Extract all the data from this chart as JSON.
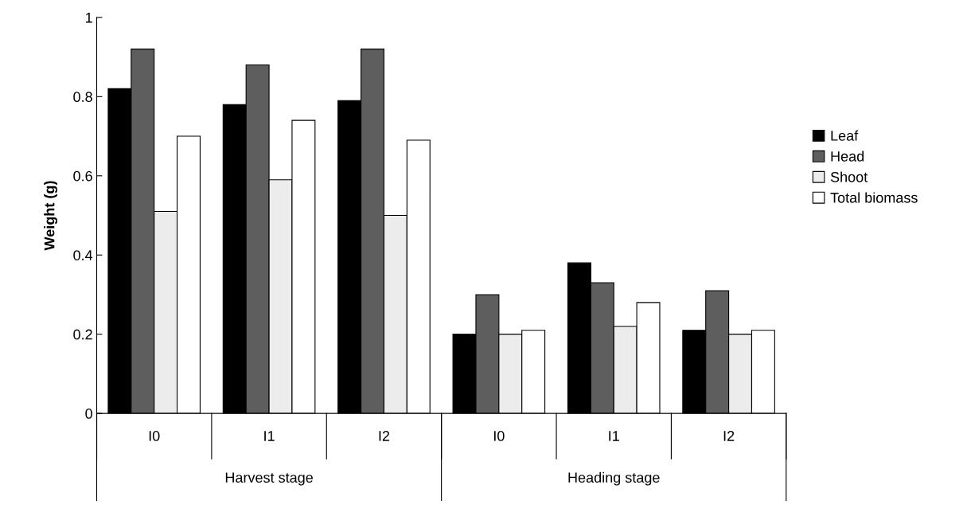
{
  "chart_data": {
    "type": "bar",
    "ylabel": "Weight (g)",
    "categories": [
      "I0",
      "I1",
      "I2",
      "I0",
      "I1",
      "I2"
    ],
    "series": [
      {
        "name": "Leaf",
        "color": "#000000",
        "values": [
          0.82,
          0.78,
          0.79,
          0.2,
          0.38,
          0.21
        ]
      },
      {
        "name": "Head",
        "color": "#5e5e5e",
        "values": [
          0.92,
          0.88,
          0.92,
          0.3,
          0.33,
          0.31
        ]
      },
      {
        "name": "Shoot",
        "color": "#ececec",
        "values": [
          0.51,
          0.59,
          0.5,
          0.2,
          0.22,
          0.2
        ]
      },
      {
        "name": "Total biomass",
        "color": "#ffffff",
        "values": [
          0.7,
          0.74,
          0.69,
          0.21,
          0.28,
          0.21
        ]
      }
    ],
    "annotations": [
      "Harvest stage",
      "Heading stage"
    ],
    "ylim": [
      0,
      1
    ],
    "yticks": [
      0,
      0.2,
      0.4,
      0.6,
      0.8,
      1
    ],
    "grid": false,
    "legend": "right"
  }
}
